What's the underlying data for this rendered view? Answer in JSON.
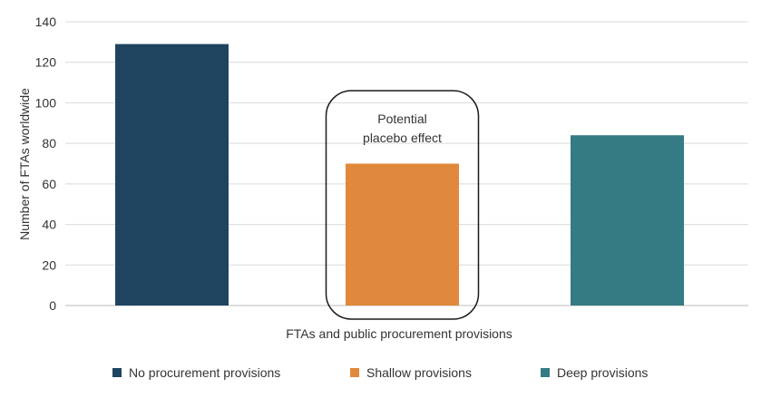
{
  "chart_data": {
    "type": "bar",
    "categories": [
      "No procurement provisions",
      "Shallow provisions",
      "Deep provisions"
    ],
    "values": [
      129,
      70,
      84
    ],
    "colors": [
      "#1f4460",
      "#e0883b",
      "#357b83"
    ],
    "xlabel": "FTAs and public procurement provisions",
    "ylabel": "Number of FTAs worldwide",
    "ylim": [
      0,
      140
    ],
    "yticks": [
      0,
      20,
      40,
      60,
      80,
      100,
      120,
      140
    ],
    "grid": true,
    "legend_position": "bottom",
    "annotation": {
      "lines": [
        "Potential",
        "placebo effect"
      ],
      "target_category": "Shallow provisions"
    }
  }
}
